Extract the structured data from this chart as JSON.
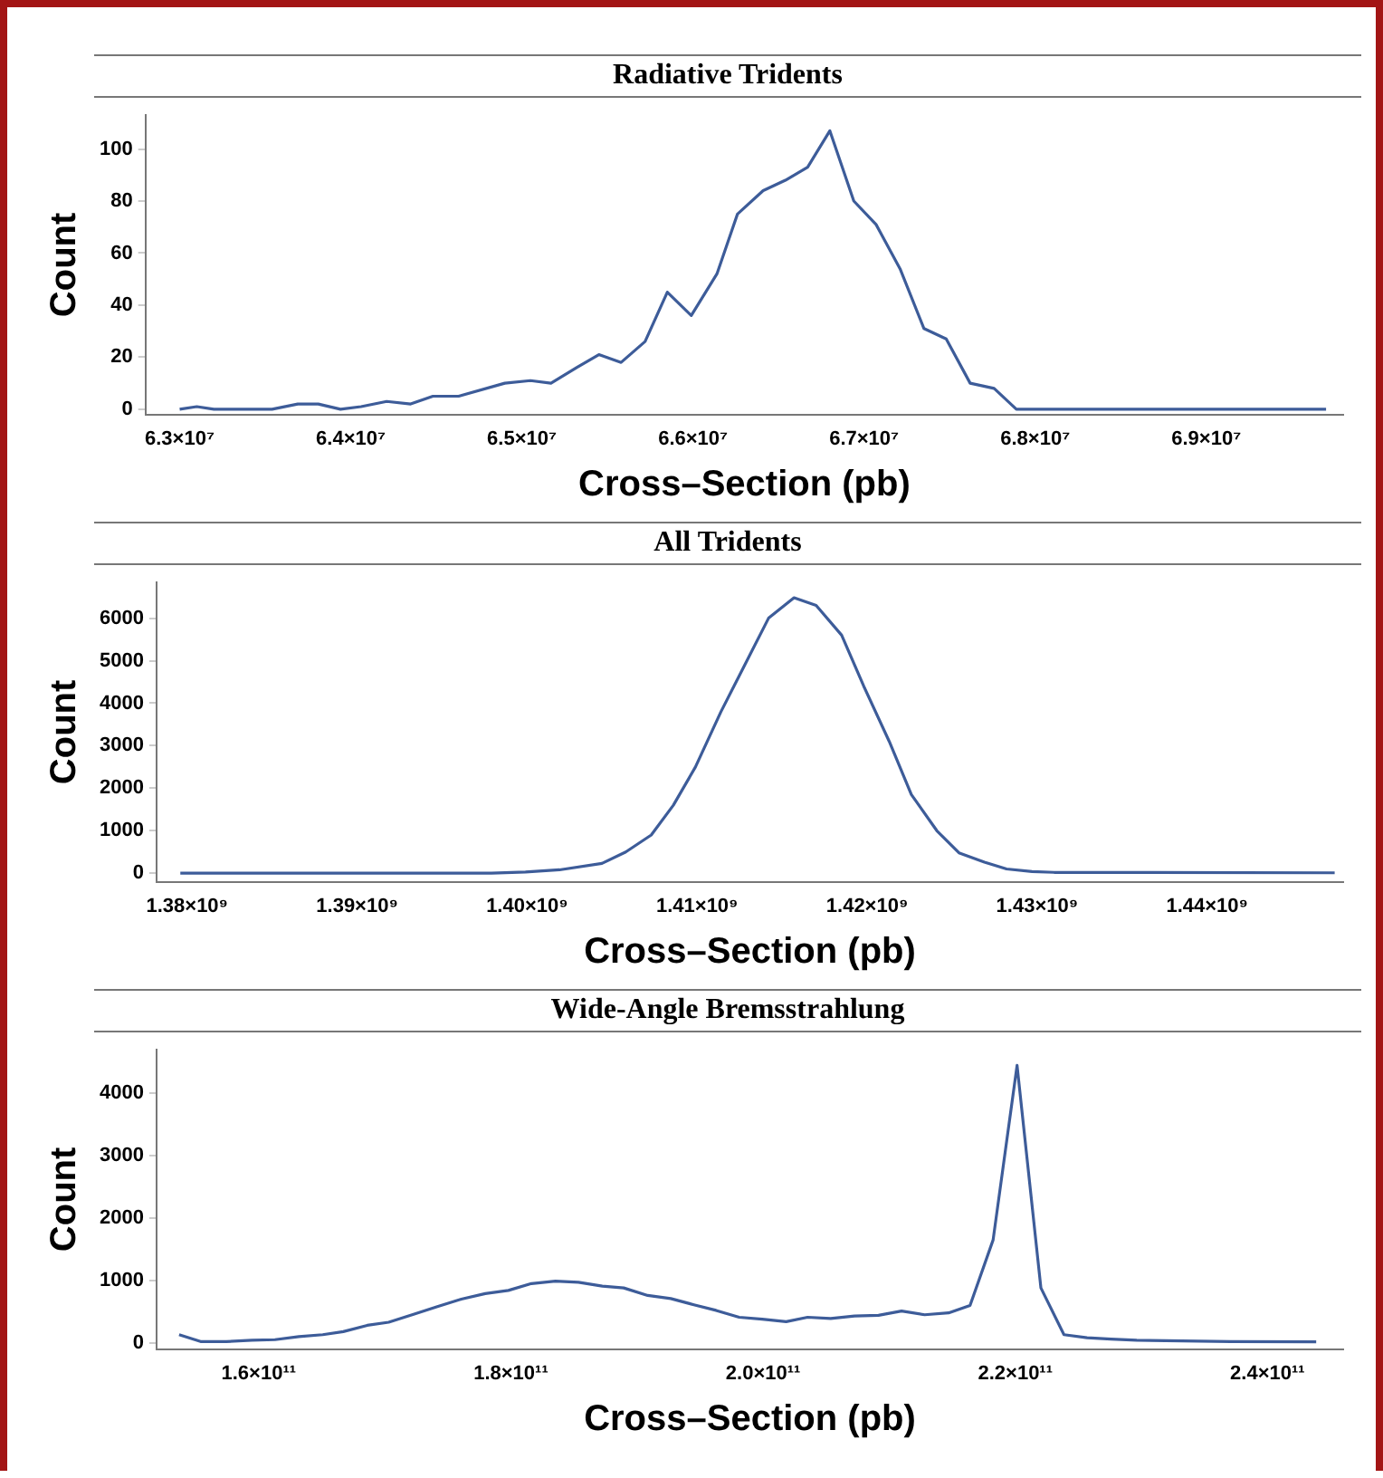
{
  "chart_data": [
    {
      "type": "line",
      "title": "Radiative Tridents",
      "xlabel": "Cross–Section (pb)",
      "ylabel": "Count",
      "color": "#3d5c99",
      "marker": "none",
      "x": [
        63000000,
        63100000,
        63200000,
        63400000,
        63540000,
        63690000,
        63810000,
        63940000,
        64060000,
        64210000,
        64350000,
        64480000,
        64630000,
        64900000,
        65050000,
        65170000,
        65320000,
        65450000,
        65580000,
        65720000,
        65850000,
        65990000,
        66140000,
        66260000,
        66410000,
        66540000,
        66670000,
        66800000,
        66940000,
        67070000,
        67210000,
        67350000,
        67480000,
        67620000,
        67760000,
        67890000,
        69700000
      ],
      "values": [
        0,
        1,
        0,
        0,
        0,
        2,
        2,
        0,
        1,
        3,
        2,
        5,
        5,
        10,
        11,
        10,
        16,
        21,
        18,
        26,
        45,
        36,
        52,
        75,
        84,
        88,
        93,
        107,
        80,
        71,
        54,
        31,
        27,
        10,
        8,
        0,
        0
      ],
      "xlim": [
        62800000,
        69800000
      ],
      "ylim": [
        -2,
        113
      ],
      "xticks": [
        {
          "value": 63000000,
          "label": "6.3×10⁷"
        },
        {
          "value": 64000000,
          "label": "6.4×10⁷"
        },
        {
          "value": 65000000,
          "label": "6.5×10⁷"
        },
        {
          "value": 66000000,
          "label": "6.6×10⁷"
        },
        {
          "value": 67000000,
          "label": "6.7×10⁷"
        },
        {
          "value": 68000000,
          "label": "6.8×10⁷"
        },
        {
          "value": 69000000,
          "label": "6.9×10⁷"
        }
      ],
      "yticks": [
        0,
        20,
        40,
        60,
        80,
        100
      ]
    },
    {
      "type": "line",
      "title": "All Tridents",
      "xlabel": "Cross–Section (pb)",
      "ylabel": "Count",
      "color": "#3d5c99",
      "marker": "none",
      "x": [
        1379600000,
        1397900000,
        1399900000,
        1401900000,
        1404400000,
        1405800000,
        1407300000,
        1408600000,
        1409900000,
        1411400000,
        1412800000,
        1414200000,
        1415700000,
        1417000000,
        1418500000,
        1419800000,
        1421300000,
        1422600000,
        1424100000,
        1425400000,
        1426900000,
        1428200000,
        1429700000,
        1431000000,
        1447500000
      ],
      "values": [
        0,
        0,
        30,
        80,
        230,
        500,
        900,
        1600,
        2500,
        3800,
        4900,
        6000,
        6480,
        6300,
        5600,
        4400,
        3100,
        1850,
        1000,
        480,
        260,
        100,
        40,
        20,
        10
      ],
      "xlim": [
        1378200000,
        1448000000
      ],
      "ylim": [
        -200,
        6840
      ],
      "xticks": [
        {
          "value": 1380000000,
          "label": "1.38×10⁹"
        },
        {
          "value": 1390000000,
          "label": "1.39×10⁹"
        },
        {
          "value": 1400000000,
          "label": "1.40×10⁹"
        },
        {
          "value": 1410000000,
          "label": "1.41×10⁹"
        },
        {
          "value": 1420000000,
          "label": "1.42×10⁹"
        },
        {
          "value": 1430000000,
          "label": "1.43×10⁹"
        },
        {
          "value": 1440000000,
          "label": "1.44×10⁹"
        }
      ],
      "yticks": [
        0,
        1000,
        2000,
        3000,
        4000,
        5000,
        6000
      ]
    },
    {
      "type": "line",
      "title": "Wide-Angle Bremsstrahlung",
      "xlabel": "Cross–Section (pb)",
      "ylabel": "Count",
      "color": "#3d5c99",
      "marker": "none",
      "x": [
        153690000000,
        155390000000,
        157420000000,
        159460000000,
        161290000000,
        163190000000,
        165080000000,
        166710000000,
        168610000000,
        170310000000,
        172340000000,
        174170000000,
        176070000000,
        177970000000,
        179800000000,
        181630000000,
        183530000000,
        185360000000,
        187250000000,
        188950000000,
        190850000000,
        192680000000,
        194510000000,
        196270000000,
        198100000000,
        199930000000,
        201830000000,
        203530000000,
        205360000000,
        207250000000,
        209150000000,
        210980000000,
        212810000000,
        214710000000,
        216410000000,
        218240000000,
        220140000000,
        222030000000,
        223860000000,
        225690000000,
        227590000000,
        229630000000,
        237080000000,
        243860000000
      ],
      "values": [
        130,
        20,
        20,
        40,
        50,
        100,
        130,
        180,
        280,
        330,
        460,
        580,
        700,
        790,
        840,
        950,
        990,
        970,
        910,
        880,
        760,
        710,
        610,
        520,
        410,
        380,
        340,
        410,
        390,
        430,
        440,
        510,
        450,
        480,
        600,
        1650,
        4450,
        880,
        130,
        80,
        60,
        40,
        20,
        15
      ],
      "xlim": [
        151900000000,
        246000000000
      ],
      "ylim": [
        -100,
        4700
      ],
      "xticks": [
        {
          "value": 160000000000,
          "label": "1.6×10¹¹"
        },
        {
          "value": 180000000000,
          "label": "1.8×10¹¹"
        },
        {
          "value": 200000000000,
          "label": "2.0×10¹¹"
        },
        {
          "value": 220000000000,
          "label": "2.2×10¹¹"
        },
        {
          "value": 240000000000,
          "label": "2.4×10¹¹"
        }
      ],
      "yticks": [
        0,
        1000,
        2000,
        3000,
        4000
      ]
    }
  ]
}
